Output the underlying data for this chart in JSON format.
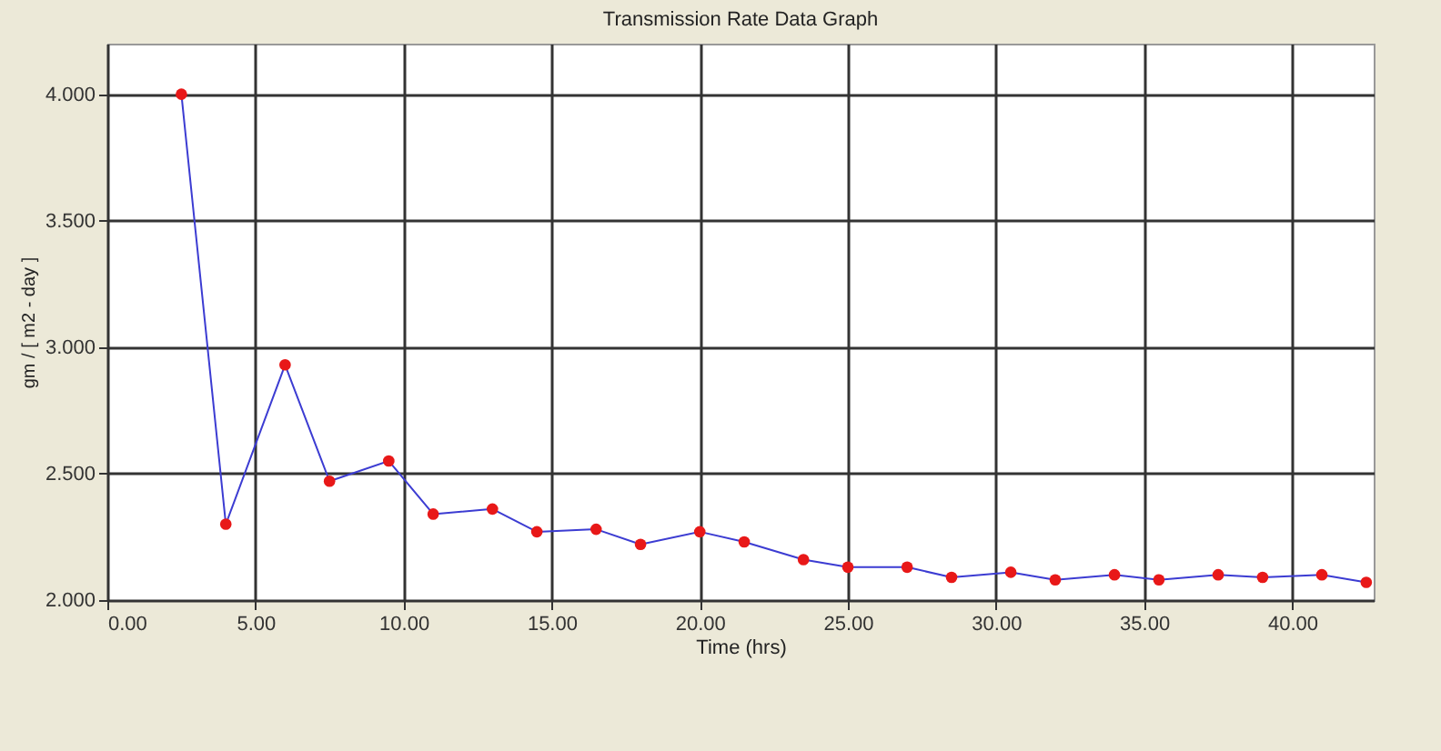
{
  "chart_data": {
    "type": "line",
    "title": "Transmission Rate Data Graph",
    "xlabel": "Time (hrs)",
    "ylabel": "gm / [ m2 - day ]",
    "x": [
      2.5,
      4,
      6,
      7.5,
      9.5,
      11,
      13,
      14.5,
      16.5,
      18,
      20,
      21.5,
      23.5,
      25,
      27,
      28.5,
      30.5,
      32,
      34,
      35.5,
      37.5,
      39,
      41,
      42.5
    ],
    "series": [
      {
        "color": "#3c3cd2",
        "colors": [
          "#e81818",
          "#e81818",
          "#e81818",
          "#e81818",
          "#e81818",
          "#e81818",
          "#e81818",
          "#e81818",
          "#e81818",
          "#e81818",
          "#e81818",
          "#e81818",
          "#e81818",
          "#e81818",
          "#e81818",
          "#e81818",
          "#e81818",
          "#e81818",
          "#e81818",
          "#e81818",
          "#e81818",
          "#e81818",
          "#e81818",
          "#e81818"
        ],
        "values": [
          4.0,
          2.3,
          2.93,
          2.47,
          2.55,
          2.34,
          2.36,
          2.27,
          2.28,
          2.22,
          2.27,
          2.23,
          2.16,
          2.13,
          2.13,
          2.09,
          2.11,
          2.08,
          2.1,
          2.08,
          2.1,
          2.09,
          2.1,
          2.07
        ]
      }
    ],
    "xlim": [
      0,
      42.75
    ],
    "ylim": [
      2,
      4.2
    ],
    "xticks": [
      {
        "value": 0,
        "label": "0.00"
      },
      {
        "value": 5,
        "label": "5.00"
      },
      {
        "value": 10,
        "label": "10.00"
      },
      {
        "value": 15,
        "label": "15.00"
      },
      {
        "value": 20,
        "label": "20.00"
      },
      {
        "value": 25,
        "label": "25.00"
      },
      {
        "value": 30,
        "label": "30.00"
      },
      {
        "value": 35,
        "label": "35.00"
      },
      {
        "value": 40,
        "label": "40.00"
      }
    ],
    "yticks": [
      {
        "value": 2,
        "label": "2.000"
      },
      {
        "value": 2.5,
        "label": "2.500"
      },
      {
        "value": 3,
        "label": "3.000"
      },
      {
        "value": 3.5,
        "label": "3.500"
      },
      {
        "value": 4,
        "label": "4.000"
      }
    ],
    "grid": true,
    "marker": "circle",
    "line_style": "solid"
  }
}
